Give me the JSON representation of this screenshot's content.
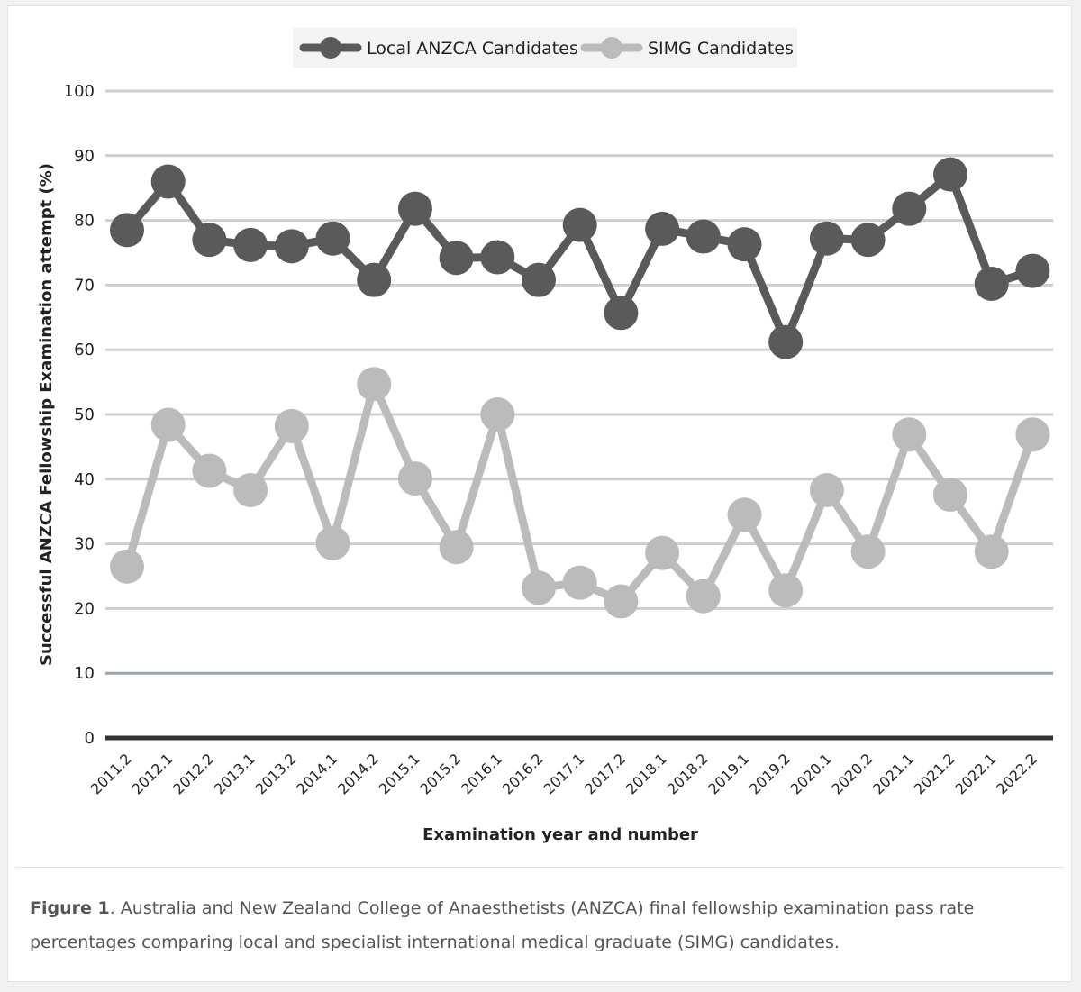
{
  "figure": {
    "caption_label": "Figure 1",
    "caption_text": ". Australia and New Zealand College of Anaesthetists (ANZCA) final fellowship examination pass rate percentages comparing local and specialist international medical graduate (SIMG) candidates."
  },
  "chart_data": {
    "type": "line",
    "title": "",
    "xlabel": "Examination year and number",
    "ylabel": "Successful ANZCA Fellowship Examination attempt (%)",
    "ylim": [
      0,
      100
    ],
    "yticks": [
      0,
      10,
      20,
      30,
      40,
      50,
      60,
      70,
      80,
      90,
      100
    ],
    "grid": true,
    "legend_position": "top-center",
    "categories": [
      "2011.2",
      "2012.1",
      "2012.2",
      "2013.1",
      "2013.2",
      "2014.1",
      "2014.2",
      "2015.1",
      "2015.2",
      "2016.1",
      "2016.2",
      "2017.1",
      "2017.2",
      "2018.1",
      "2018.2",
      "2019.1",
      "2019.2",
      "2020.1",
      "2020.2",
      "2021.1",
      "2021.2",
      "2022.1",
      "2022.2"
    ],
    "series": [
      {
        "name": "Local ANZCA Candidates",
        "color": "#5a5a5a",
        "values": [
          78.5,
          86.0,
          77.0,
          76.2,
          76.0,
          77.2,
          70.8,
          81.8,
          74.2,
          74.3,
          70.8,
          79.3,
          65.7,
          78.7,
          77.5,
          76.3,
          61.2,
          77.2,
          77.0,
          81.8,
          87.1,
          70.2,
          72.2
        ]
      },
      {
        "name": "SIMG Candidates",
        "color": "#bbbbbb",
        "values": [
          26.5,
          48.4,
          41.3,
          38.3,
          48.2,
          30.1,
          54.7,
          40.1,
          29.5,
          50.0,
          23.2,
          24.0,
          21.1,
          28.6,
          21.9,
          34.5,
          22.8,
          38.3,
          28.8,
          46.9,
          37.6,
          28.8,
          46.9
        ]
      }
    ]
  }
}
